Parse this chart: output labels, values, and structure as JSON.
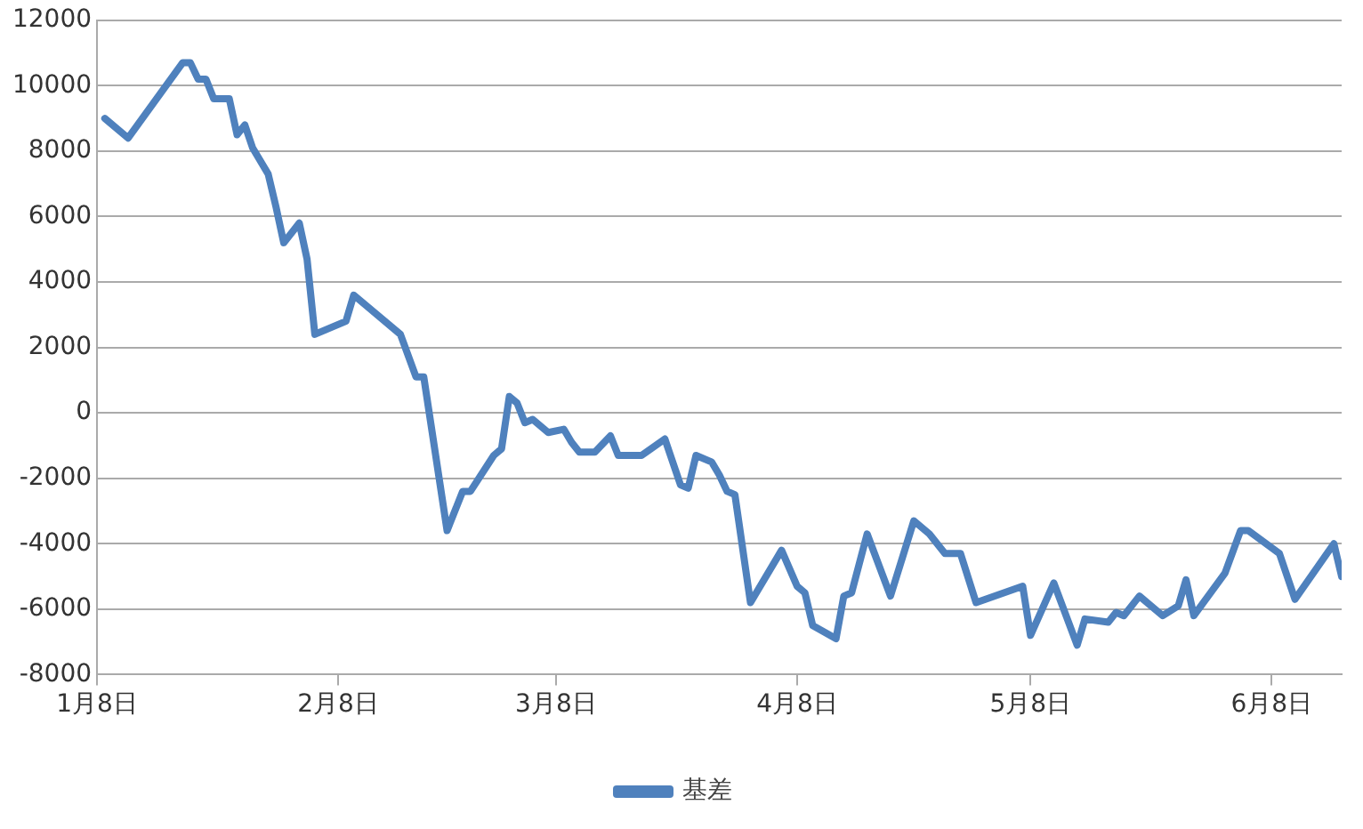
{
  "chart_data": {
    "type": "line",
    "legend": "bottom",
    "grid": "y",
    "marker": "none",
    "line_style": "solid",
    "ylim": [
      -8000,
      12000
    ],
    "yticks": [
      -8000,
      -6000,
      -4000,
      -2000,
      0,
      2000,
      4000,
      6000,
      8000,
      10000,
      12000
    ],
    "xlim": [
      "--01-08",
      "--06-17"
    ],
    "xticks": [
      {
        "value": "--01-08",
        "label": "1月8日"
      },
      {
        "value": "--02-08",
        "label": "2月8日"
      },
      {
        "value": "--03-08",
        "label": "3月8日"
      },
      {
        "value": "--04-08",
        "label": "4月8日"
      },
      {
        "value": "--05-08",
        "label": "5月8日"
      },
      {
        "value": "--06-08",
        "label": "6月8日"
      }
    ],
    "x": [
      "--01-09",
      "--01-12",
      "--01-19",
      "--01-20",
      "--01-21",
      "--01-22",
      "--01-23",
      "--01-25",
      "--01-26",
      "--01-27",
      "--01-28",
      "--01-30",
      "--01-31",
      "--02-01",
      "--02-03",
      "--02-04",
      "--02-05",
      "--02-09",
      "--02-10",
      "--02-16",
      "--02-18",
      "--02-19",
      "--02-22",
      "--02-24",
      "--02-25",
      "--02-28",
      "--03-01",
      "--03-02",
      "--03-03",
      "--03-04",
      "--03-05",
      "--03-07",
      "--03-09",
      "--03-10",
      "--03-11",
      "--03-13",
      "--03-15",
      "--03-16",
      "--03-17",
      "--03-19",
      "--03-22",
      "--03-24",
      "--03-25",
      "--03-26",
      "--03-28",
      "--03-29",
      "--03-30",
      "--03-31",
      "--04-02",
      "--04-06",
      "--04-08",
      "--04-09",
      "--04-10",
      "--04-13",
      "--04-14",
      "--04-15",
      "--04-17",
      "--04-20",
      "--04-23",
      "--04-25",
      "--04-27",
      "--04-29",
      "--05-01",
      "--05-07",
      "--05-08",
      "--05-11",
      "--05-14",
      "--05-15",
      "--05-18",
      "--05-19",
      "--05-20",
      "--05-22",
      "--05-25",
      "--05-27",
      "--05-28",
      "--05-29",
      "--06-02",
      "--06-04",
      "--06-05",
      "--06-09",
      "--06-11",
      "--06-16",
      "--06-17"
    ],
    "series": [
      {
        "name": "基差",
        "color": "#4f81bd",
        "values": [
          9000,
          8400,
          10700,
          10700,
          10200,
          10200,
          9600,
          9600,
          8500,
          8800,
          8100,
          7300,
          6300,
          5200,
          5800,
          4700,
          2400,
          2800,
          3600,
          2400,
          1100,
          1100,
          -3600,
          -2400,
          -2400,
          -1300,
          -1100,
          500,
          300,
          -300,
          -200,
          -600,
          -500,
          -900,
          -1200,
          -1200,
          -700,
          -1300,
          -1300,
          -1300,
          -800,
          -2200,
          -2300,
          -1300,
          -1500,
          -1900,
          -2400,
          -2500,
          -5800,
          -4200,
          -5300,
          -5500,
          -6500,
          -6900,
          -5600,
          -5500,
          -3700,
          -5600,
          -3300,
          -3700,
          -4300,
          -4300,
          -5800,
          -5300,
          -6800,
          -5200,
          -7100,
          -6300,
          -6400,
          -6100,
          -6200,
          -5600,
          -6200,
          -5900,
          -5100,
          -6200,
          -4900,
          -3600,
          -3600,
          -4300,
          -5700,
          -4000,
          -5000
        ]
      }
    ]
  }
}
